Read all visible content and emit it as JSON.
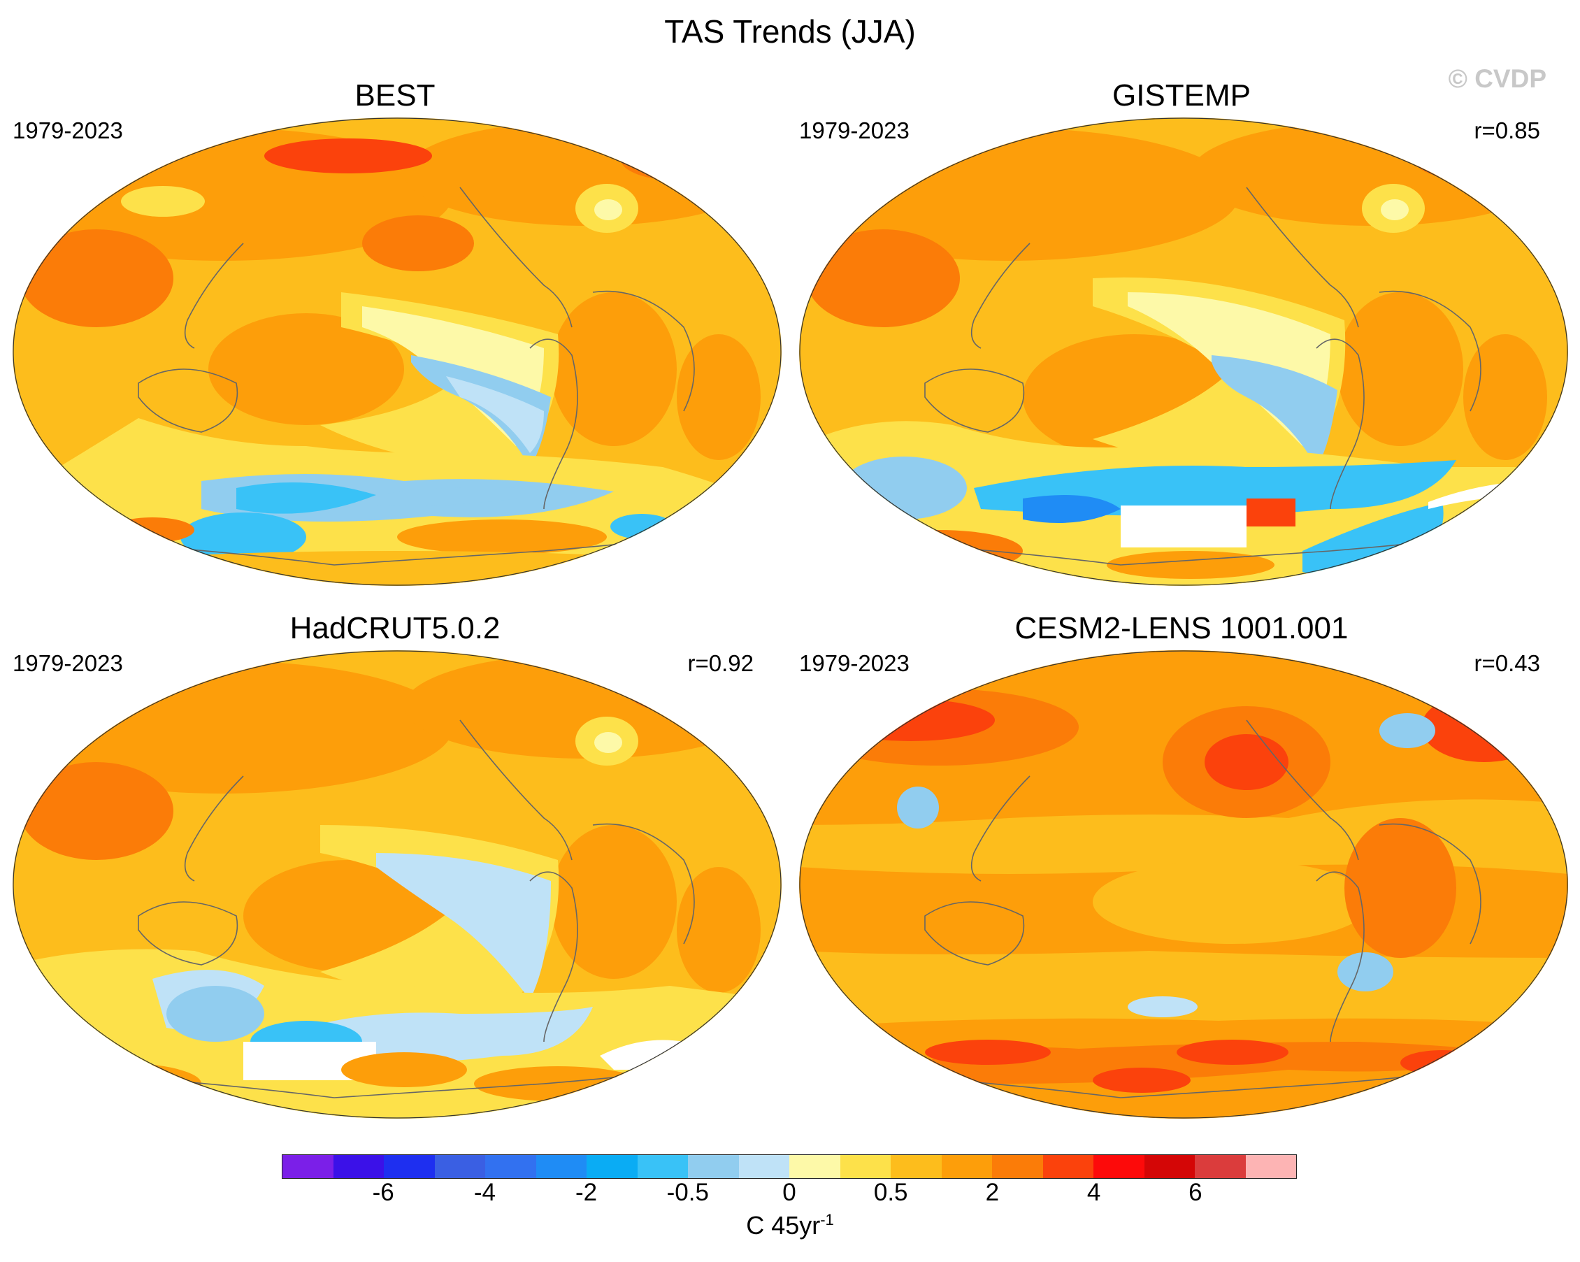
{
  "figure": {
    "title": "TAS Trends (JJA)",
    "copyright": "© CVDP"
  },
  "panels": [
    {
      "title": "BEST",
      "period": "1979-2023",
      "correlation": "",
      "style": "best"
    },
    {
      "title": "GISTEMP",
      "period": "1979-2023",
      "correlation": "r=0.85",
      "style": "gistemp"
    },
    {
      "title": "HadCRUT5.0.2",
      "period": "1979-2023",
      "correlation": "r=0.92",
      "style": "hadcrut"
    },
    {
      "title": "CESM2-LENS 1001.001",
      "period": "1979-2023",
      "correlation": "r=0.43",
      "style": "cesm"
    }
  ],
  "colorbar": {
    "colors": [
      "#7b1fe8",
      "#3b11e8",
      "#1e2ff0",
      "#3a5fe3",
      "#3271f0",
      "#1f8cf5",
      "#0aacf4",
      "#39c2f7",
      "#91cdef",
      "#bfe2f7",
      "#fdf9a8",
      "#fde14a",
      "#fdbd1c",
      "#fd9e0a",
      "#fb7c08",
      "#fb420c",
      "#fd0a0a",
      "#d40606",
      "#db3c3c",
      "#fdb4b4"
    ],
    "labels": [
      "-6",
      "-4",
      "-2",
      "-0.5",
      "0",
      "0.5",
      "2",
      "4",
      "6"
    ],
    "units_main": "C 45yr",
    "units_exp": "-1"
  }
}
